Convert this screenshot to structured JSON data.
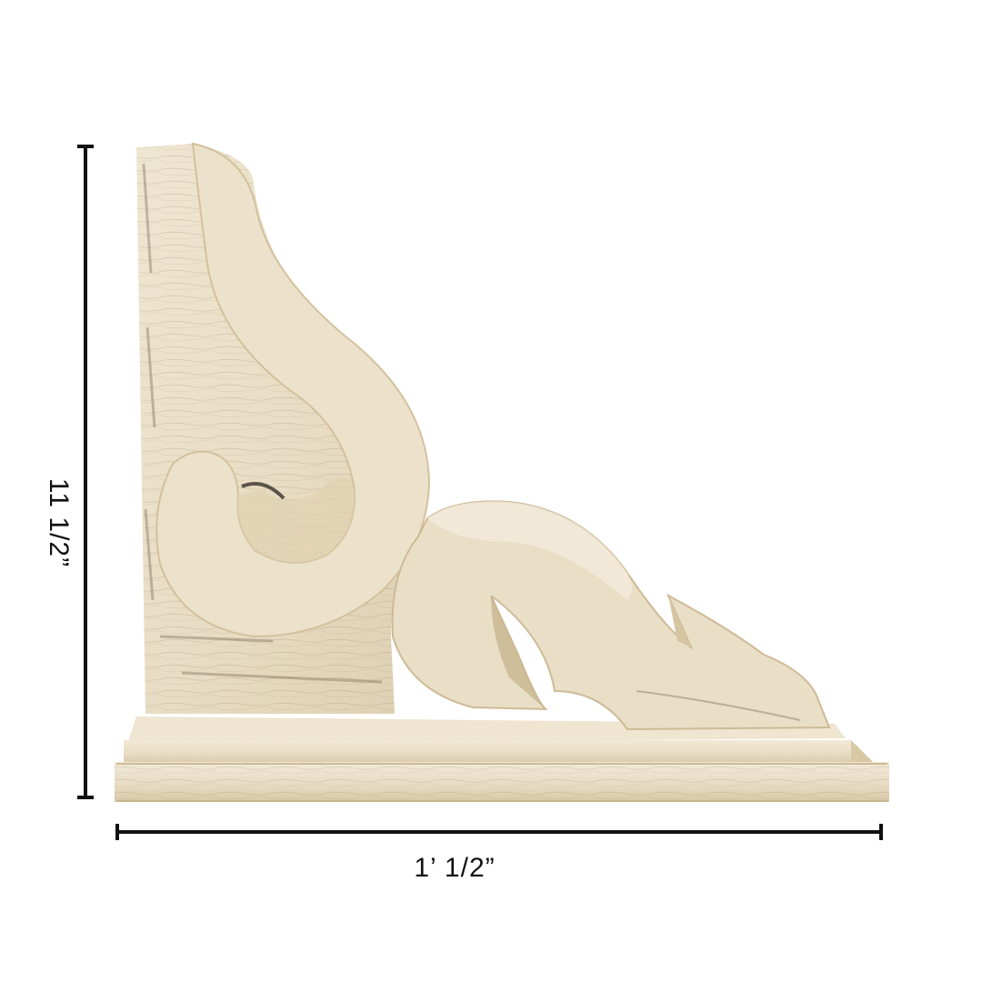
{
  "product_image": {
    "subject": "wooden-corbel-bracket",
    "colors": {
      "wood_light": "#efe6d2",
      "wood_mid": "#e2d5b9",
      "wood_shadow": "#c9b894",
      "grain_dark": "#6b5a44",
      "background": "#ffffff",
      "dimension_line": "#111111"
    }
  },
  "dimensions": {
    "height_label": "11 1/2”",
    "width_label": "1’ 1/2”"
  }
}
